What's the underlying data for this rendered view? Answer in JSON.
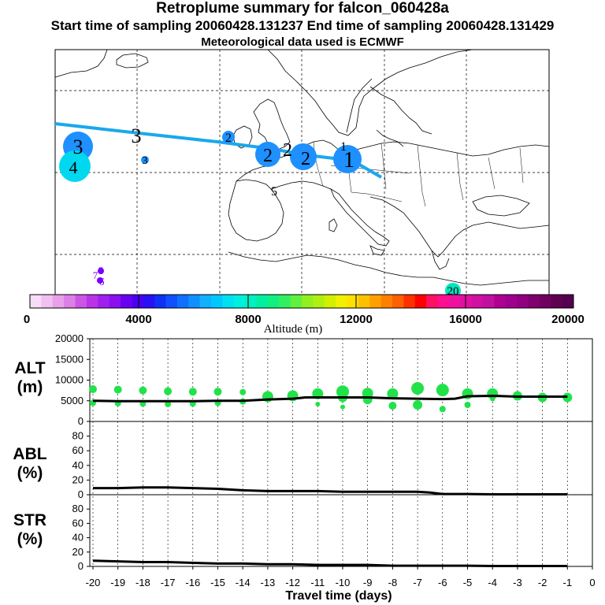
{
  "header": {
    "title": "Retroplume summary for falcon_060428a",
    "sampling": "Start time of sampling 20060428.131237     End time of sampling 20060428.131429",
    "met": "Meteorological data used is ECMWF"
  },
  "map": {
    "labels": [
      {
        "text": "3",
        "kind": "cluster",
        "color": "#1e90ff"
      },
      {
        "text": "4",
        "kind": "cluster",
        "color": "#00e0f0"
      },
      {
        "text": "3",
        "kind": "small",
        "color": "#1e90ff"
      },
      {
        "text": "3",
        "kind": "plain"
      },
      {
        "text": "2",
        "kind": "small",
        "color": "#1e90ff"
      },
      {
        "text": "2",
        "kind": "cluster",
        "color": "#1e90ff"
      },
      {
        "text": "2",
        "kind": "cluster",
        "color": "#1e90ff"
      },
      {
        "text": "2",
        "kind": "plain"
      },
      {
        "text": "1",
        "kind": "plain"
      },
      {
        "text": "1",
        "kind": "cluster",
        "color": "#1e90ff"
      },
      {
        "text": "5",
        "kind": "plain"
      },
      {
        "text": "8",
        "kind": "small",
        "color": "#7a00ff"
      },
      {
        "text": "6",
        "kind": "small",
        "color": "#7a00ff"
      },
      {
        "text": "7",
        "kind": "small",
        "color": "#7a00ff"
      },
      {
        "text": "20",
        "kind": "small",
        "color": "#00e5c0"
      }
    ]
  },
  "colorbar": {
    "ticks": [
      "0",
      "4000",
      "8000",
      "12000",
      "16000",
      "20000"
    ],
    "label": "Altitude (m)",
    "colors": [
      "#f6dcf6",
      "#f0c0f0",
      "#e8a0e8",
      "#dd80e6",
      "#cc55e6",
      "#bb33e6",
      "#a020f0",
      "#8a10f0",
      "#6a00f0",
      "#4a00f0",
      "#2a10f5",
      "#1030f5",
      "#1050ff",
      "#1070ff",
      "#1090ff",
      "#10b0ff",
      "#00c8ff",
      "#00e0f0",
      "#00f0e0",
      "#00f0c0",
      "#00f0a0",
      "#10f080",
      "#30f060",
      "#60f040",
      "#90f020",
      "#b0f010",
      "#d0f000",
      "#f0f000",
      "#ffe000",
      "#ffc000",
      "#ffa000",
      "#ff8000",
      "#ff6000",
      "#ff3000",
      "#ff0000",
      "#ff1060",
      "#ff1090",
      "#f010a0",
      "#e010a0",
      "#d010a0",
      "#c010a0",
      "#b00090",
      "#a00090",
      "#900080",
      "#800070",
      "#700060",
      "#600050",
      "#550050"
    ]
  },
  "chart_data": [
    {
      "type": "scatter",
      "panel": "ALT",
      "ylabel": "ALT (m)",
      "xlabel": "Travel time (days)",
      "xlim": [
        -20,
        0
      ],
      "ylim": [
        0,
        20000
      ],
      "yticks": [
        "20000",
        "15000",
        "10000",
        "5000",
        "0"
      ],
      "line": {
        "x": [
          -20,
          -19,
          -18,
          -17,
          -16,
          -15,
          -14,
          -13,
          -12,
          -11.5,
          -11,
          -10,
          -9,
          -8,
          -7,
          -6,
          -5.5,
          -5,
          -4,
          -3,
          -2,
          -1
        ],
        "y": [
          5000,
          4900,
          4900,
          4900,
          4900,
          5000,
          5000,
          5300,
          5500,
          5800,
          5800,
          5800,
          5800,
          5600,
          5500,
          5400,
          5500,
          6100,
          6200,
          6000,
          6000,
          6000
        ]
      },
      "clusters": {
        "x": [
          -20,
          -20,
          -19,
          -19,
          -18,
          -18,
          -17,
          -17,
          -16,
          -16,
          -15,
          -15,
          -14,
          -14,
          -13,
          -12,
          -11,
          -11,
          -10,
          -10,
          -10,
          -9,
          -9,
          -8,
          -8,
          -7,
          -7,
          -6,
          -6,
          -5,
          -5,
          -4,
          -4,
          -3,
          -2,
          -1
        ],
        "y": [
          7800,
          4500,
          7700,
          4400,
          7500,
          4300,
          7300,
          4200,
          7200,
          4300,
          7200,
          4500,
          7100,
          4800,
          6000,
          6200,
          6700,
          4200,
          7200,
          5800,
          3500,
          6800,
          5300,
          6700,
          3800,
          8000,
          4000,
          7600,
          3000,
          6700,
          4000,
          6700,
          5400,
          6200,
          5800,
          5800
        ],
        "size": [
          5,
          4,
          5,
          4,
          5,
          4,
          5,
          4,
          5,
          4,
          5,
          4,
          4,
          4,
          7,
          7,
          7,
          3,
          8,
          6,
          3,
          7,
          6,
          7,
          5,
          8,
          6,
          8,
          4,
          7,
          4,
          7,
          3,
          6,
          6,
          6
        ]
      }
    },
    {
      "type": "line",
      "panel": "ABL",
      "ylabel": "ABL (%)",
      "xlim": [
        -20,
        0
      ],
      "ylim": [
        0,
        100
      ],
      "yticks": [
        "80",
        "60",
        "40",
        "20",
        "0"
      ],
      "x": [
        -20,
        -19,
        -18,
        -17,
        -16,
        -15,
        -14,
        -13,
        -12,
        -11,
        -10,
        -9,
        -8,
        -7,
        -6.5,
        -6,
        -5,
        -4,
        -3,
        -2,
        -1
      ],
      "y": [
        9,
        9,
        10,
        10,
        9,
        8,
        6,
        5,
        5,
        5,
        4,
        4,
        4,
        4,
        3,
        1,
        1,
        0.5,
        0.5,
        0.5,
        0.5
      ]
    },
    {
      "type": "line",
      "panel": "STR",
      "ylabel": "STR (%)",
      "xlim": [
        -20,
        0
      ],
      "ylim": [
        0,
        100
      ],
      "yticks": [
        "80",
        "60",
        "40",
        "20",
        "0"
      ],
      "x": [
        -20,
        -19,
        -18,
        -17,
        -16,
        -15,
        -14,
        -13,
        -12,
        -11,
        -10,
        -9,
        -8,
        -7,
        -6,
        -5,
        -4,
        -3,
        -2,
        -1
      ],
      "y": [
        8,
        7,
        6,
        6,
        5,
        4,
        4,
        3,
        3,
        2,
        2,
        2,
        1,
        1,
        1,
        1,
        0.5,
        0.5,
        0.5,
        0.5
      ]
    }
  ],
  "xaxis": {
    "ticks": [
      "-20",
      "-19",
      "-18",
      "-17",
      "-16",
      "-15",
      "-14",
      "-13",
      "-12",
      "-11",
      "-10",
      "-9",
      "-8",
      "-7",
      "-6",
      "-5",
      "-4",
      "-3",
      "-2",
      "-1",
      "0"
    ],
    "label": "Travel time (days)"
  },
  "panels": {
    "alt_label_1": "ALT",
    "alt_label_2": "(m)",
    "abl_label_1": "ABL",
    "abl_label_2": "(%)",
    "str_label_1": "STR",
    "str_label_2": "(%)"
  },
  "colors": {
    "trajectory": "#1aa8ec",
    "cluster_green": "#22e24a",
    "line": "#000000"
  }
}
